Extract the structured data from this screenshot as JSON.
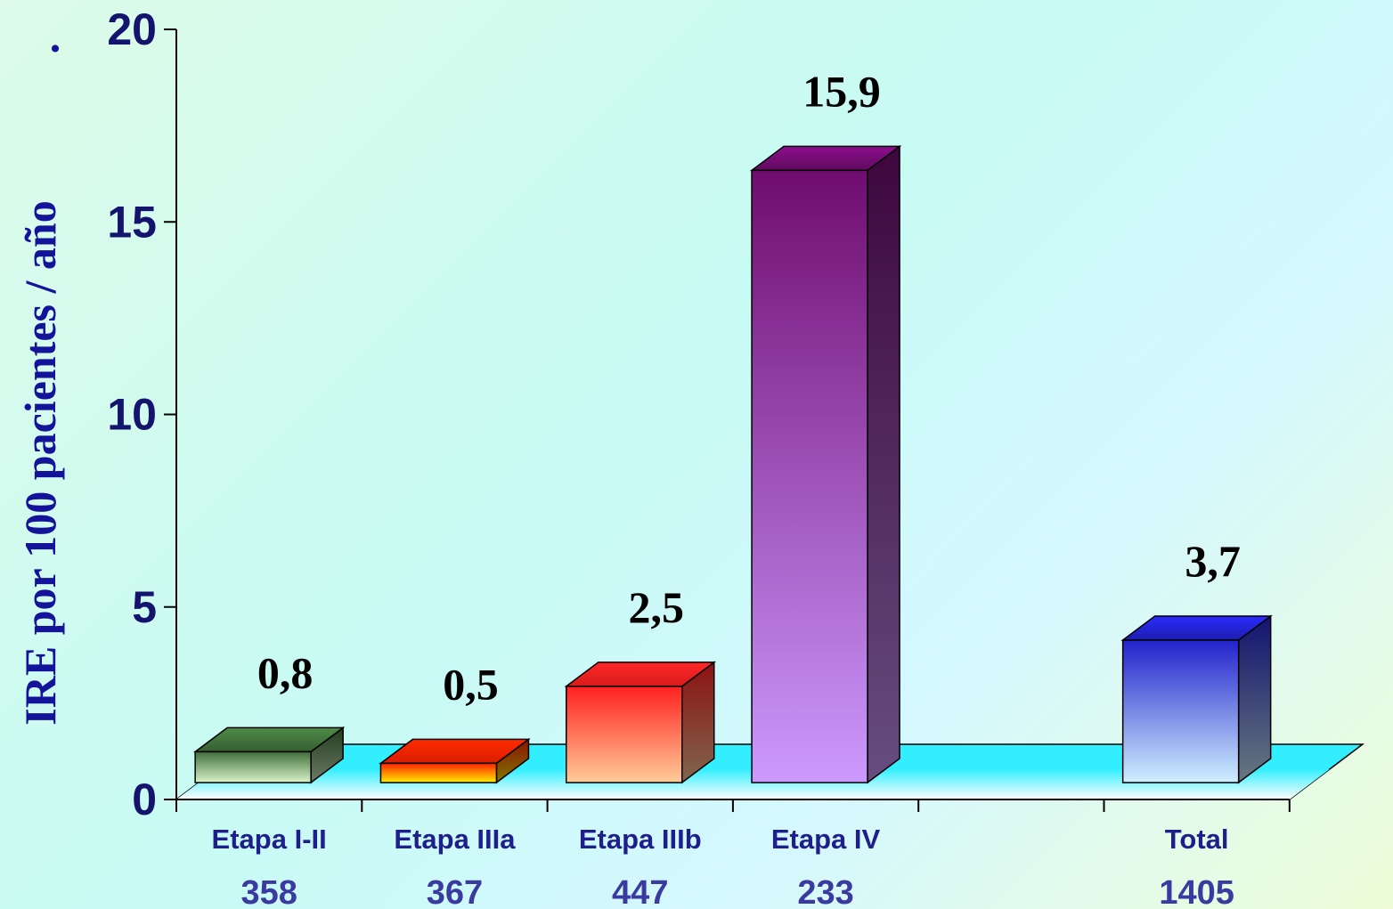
{
  "chart_data": {
    "type": "bar",
    "ylabel": "IRE por 100 pacientes / año",
    "ylim": [
      0,
      20
    ],
    "yticks": [
      "0",
      "5",
      "10",
      "15",
      "20"
    ],
    "categories": [
      "Etapa I-II",
      "Etapa IIIa",
      "Etapa IIIb",
      "Etapa IV",
      "",
      "Total"
    ],
    "counts": [
      "358",
      "367",
      "447",
      "233",
      "",
      "1405"
    ],
    "values": [
      0.8,
      0.5,
      2.5,
      15.9,
      null,
      3.7
    ],
    "value_labels": [
      "0,8",
      "0,5",
      "2,5",
      "15,9",
      "",
      "3,7"
    ],
    "bar_colors": [
      {
        "top": "#3f6f3a",
        "bottom": "#d8f3c8"
      },
      {
        "top": "#ff2200",
        "bottom": "#ffee00"
      },
      {
        "top": "#ff2020",
        "bottom": "#ffcc99"
      },
      {
        "top": "#700c70",
        "bottom": "#cc99ff"
      },
      null,
      {
        "top": "#2222cc",
        "bottom": "#cfefff"
      }
    ],
    "floor_color": "#33eeff",
    "grid": false,
    "legend": "none"
  }
}
